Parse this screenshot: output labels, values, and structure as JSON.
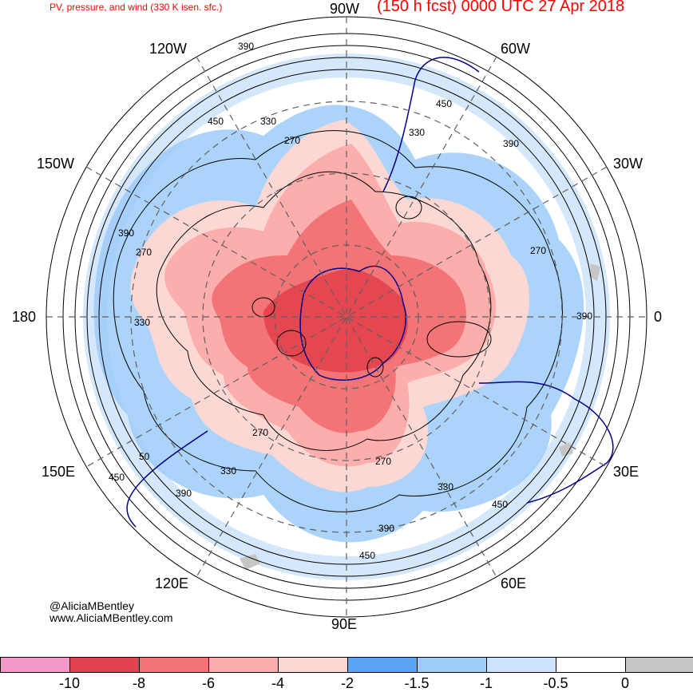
{
  "header": {
    "left_title": "PV, pressure, and wind (330 K isen. sfc.)",
    "right_title": "(150 h fcst) 0000 UTC 27 Apr 2018"
  },
  "longitude_labels": [
    "90W",
    "60W",
    "30W",
    "0",
    "30E",
    "60E",
    "90E",
    "120E",
    "150E",
    "180",
    "150W",
    "120W"
  ],
  "contour_labels": [
    "390",
    "450",
    "330",
    "270",
    "390",
    "450",
    "330",
    "390",
    "270",
    "270",
    "390",
    "330",
    "270",
    "330",
    "270",
    "330",
    "450",
    "390",
    "450",
    "390",
    "450",
    "50"
  ],
  "credit": {
    "handle": "@AliciaMBentley",
    "website": "www.AliciaMBentley.com"
  },
  "colorbar": {
    "colors": [
      "#f49ac8",
      "#e3434e",
      "#f37476",
      "#fbaeac",
      "#fcd8d5",
      "#5ca3f2",
      "#9ecbf8",
      "#cee4fa",
      "#ffffff",
      "#c6c6c6"
    ],
    "labels": [
      "-10",
      "-8",
      "-6",
      "-4",
      "-2",
      "-1.5",
      "-1",
      "-0.5",
      "0"
    ]
  }
}
